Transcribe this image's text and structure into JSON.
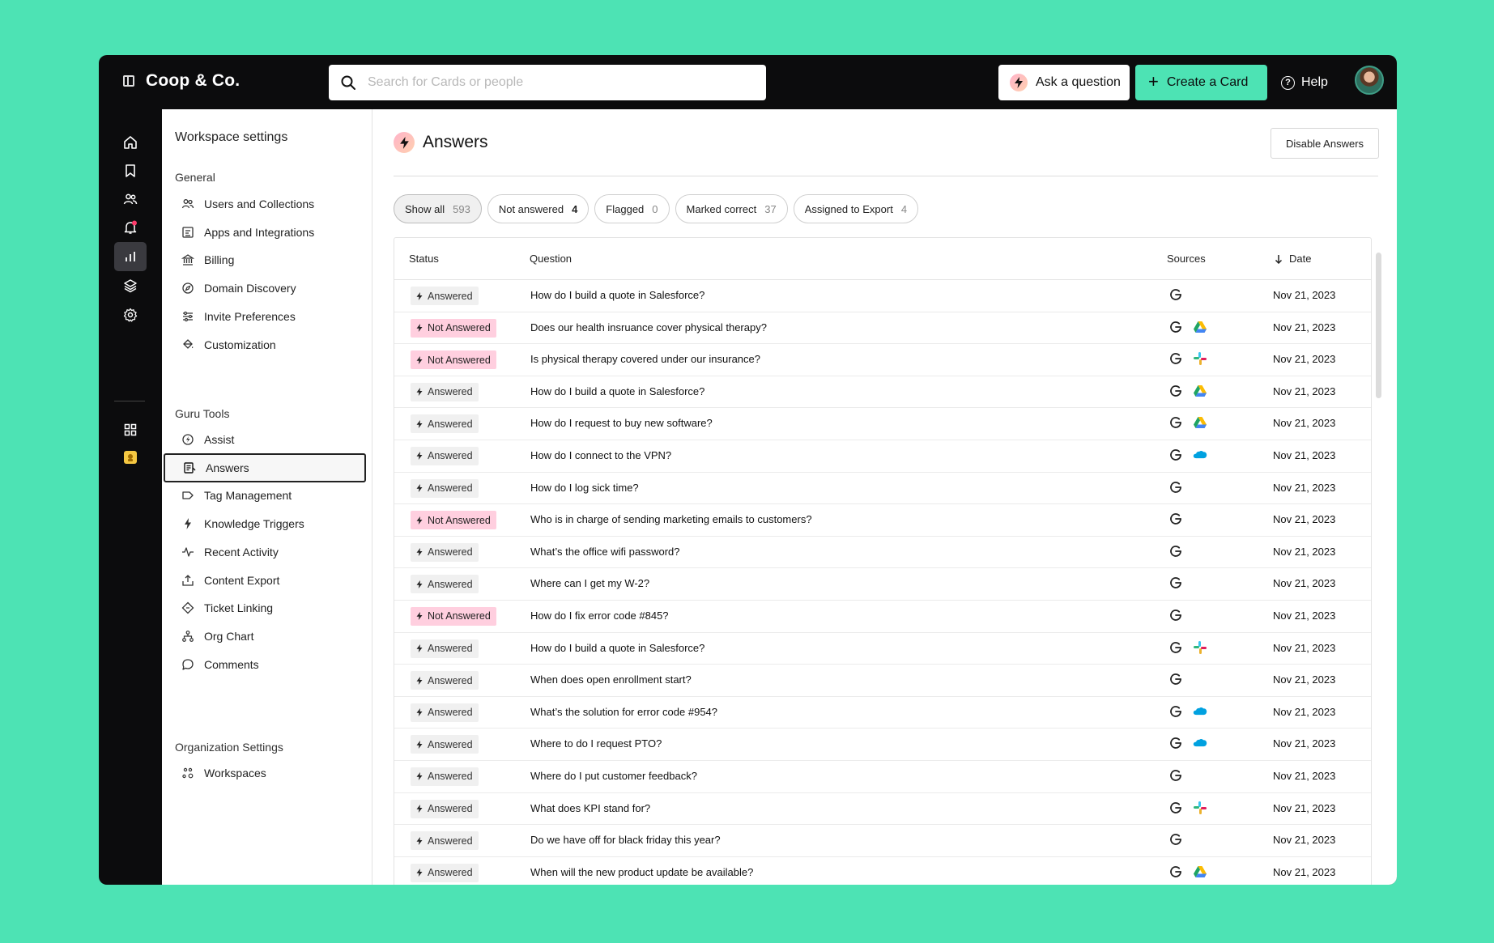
{
  "app": {
    "brand": "Coop & Co."
  },
  "search": {
    "placeholder": "Search for Cards or people"
  },
  "topbar": {
    "ask_label": "Ask a question",
    "create_label": "Create a Card",
    "help_label": "Help"
  },
  "settings": {
    "title": "Workspace settings",
    "sections": {
      "general": "General",
      "guru_tools": "Guru Tools",
      "org_settings": "Organization Settings"
    },
    "general_items": [
      {
        "label": "Users and Collections",
        "icon": "users-icon"
      },
      {
        "label": "Apps and Integrations",
        "icon": "apps-icon"
      },
      {
        "label": "Billing",
        "icon": "bank-icon"
      },
      {
        "label": "Domain Discovery",
        "icon": "compass-icon"
      },
      {
        "label": "Invite Preferences",
        "icon": "sliders-icon"
      },
      {
        "label": "Customization",
        "icon": "paint-bucket-icon"
      }
    ],
    "tools_items": [
      {
        "label": "Assist",
        "icon": "assist-icon"
      },
      {
        "label": "Answers",
        "icon": "answers-icon"
      },
      {
        "label": "Tag Management",
        "icon": "tag-icon"
      },
      {
        "label": "Knowledge Triggers",
        "icon": "bolt-icon"
      },
      {
        "label": "Recent Activity",
        "icon": "activity-icon"
      },
      {
        "label": "Content Export",
        "icon": "export-icon"
      },
      {
        "label": "Ticket Linking",
        "icon": "ticket-icon"
      },
      {
        "label": "Org Chart",
        "icon": "org-chart-icon"
      },
      {
        "label": "Comments",
        "icon": "comment-icon"
      }
    ],
    "org_items": [
      {
        "label": "Workspaces",
        "icon": "workspaces-icon"
      }
    ]
  },
  "answers": {
    "title": "Answers",
    "disable_label": "Disable Answers",
    "filters": [
      {
        "label": "Show all",
        "count": "593"
      },
      {
        "label": "Not answered",
        "count": "4"
      },
      {
        "label": "Flagged",
        "count": "0"
      },
      {
        "label": "Marked correct",
        "count": "37"
      },
      {
        "label": "Assigned to Export",
        "count": "4"
      }
    ],
    "columns": {
      "status": "Status",
      "question": "Question",
      "sources": "Sources",
      "date": "Date"
    },
    "rows": [
      {
        "status": "Answered",
        "question": "How do I build a quote in Salesforce?",
        "sources": [
          "guru"
        ],
        "date": "Nov 21, 2023"
      },
      {
        "status": "Not Answered",
        "question": "Does our health insruance cover physical therapy?",
        "sources": [
          "guru",
          "gdrive"
        ],
        "date": "Nov 21, 2023"
      },
      {
        "status": "Not Answered",
        "question": "Is physical therapy covered under our insurance?",
        "sources": [
          "guru",
          "slack"
        ],
        "date": "Nov 21, 2023"
      },
      {
        "status": "Answered",
        "question": "How do I build a quote in Salesforce?",
        "sources": [
          "guru",
          "gdrive"
        ],
        "date": "Nov 21, 2023"
      },
      {
        "status": "Answered",
        "question": "How do I request to buy new software?",
        "sources": [
          "guru",
          "gdrive"
        ],
        "date": "Nov 21, 2023"
      },
      {
        "status": "Answered",
        "question": "How do I connect to the VPN?",
        "sources": [
          "guru",
          "salesforce"
        ],
        "date": "Nov 21, 2023"
      },
      {
        "status": "Answered",
        "question": "How do I log sick time?",
        "sources": [
          "guru"
        ],
        "date": "Nov 21, 2023"
      },
      {
        "status": "Not Answered",
        "question": "Who is in charge of sending marketing emails to customers?",
        "sources": [
          "guru"
        ],
        "date": "Nov 21, 2023"
      },
      {
        "status": "Answered",
        "question": "What’s the office wifi password?",
        "sources": [
          "guru"
        ],
        "date": "Nov 21, 2023"
      },
      {
        "status": "Answered",
        "question": "Where can I get my W-2?",
        "sources": [
          "guru"
        ],
        "date": "Nov 21, 2023"
      },
      {
        "status": "Not Answered",
        "question": "How do I fix error code #845?",
        "sources": [
          "guru"
        ],
        "date": "Nov 21, 2023"
      },
      {
        "status": "Answered",
        "question": "How do I build a quote in Salesforce?",
        "sources": [
          "guru",
          "slack"
        ],
        "date": "Nov 21, 2023"
      },
      {
        "status": "Answered",
        "question": "When does open enrollment start?",
        "sources": [
          "guru"
        ],
        "date": "Nov 21, 2023"
      },
      {
        "status": "Answered",
        "question": "What’s the solution for error code #954?",
        "sources": [
          "guru",
          "salesforce"
        ],
        "date": "Nov 21, 2023"
      },
      {
        "status": "Answered",
        "question": "Where to do I request PTO?",
        "sources": [
          "guru",
          "salesforce"
        ],
        "date": "Nov 21, 2023"
      },
      {
        "status": "Answered",
        "question": "Where do I put customer feedback?",
        "sources": [
          "guru"
        ],
        "date": "Nov 21, 2023"
      },
      {
        "status": "Answered",
        "question": "What does KPI stand for?",
        "sources": [
          "guru",
          "slack"
        ],
        "date": "Nov 21, 2023"
      },
      {
        "status": "Answered",
        "question": "Do we have off for black friday this year?",
        "sources": [
          "guru"
        ],
        "date": "Nov 21, 2023"
      },
      {
        "status": "Answered",
        "question": "When will the new product update be available?",
        "sources": [
          "guru",
          "gdrive"
        ],
        "date": "Nov 21, 2023"
      }
    ]
  },
  "colors": {
    "accent": "#4de3b4",
    "background": "#4de3b4",
    "not_answered_badge": "#ffcfdf",
    "answered_badge": "#f0f0f0"
  }
}
